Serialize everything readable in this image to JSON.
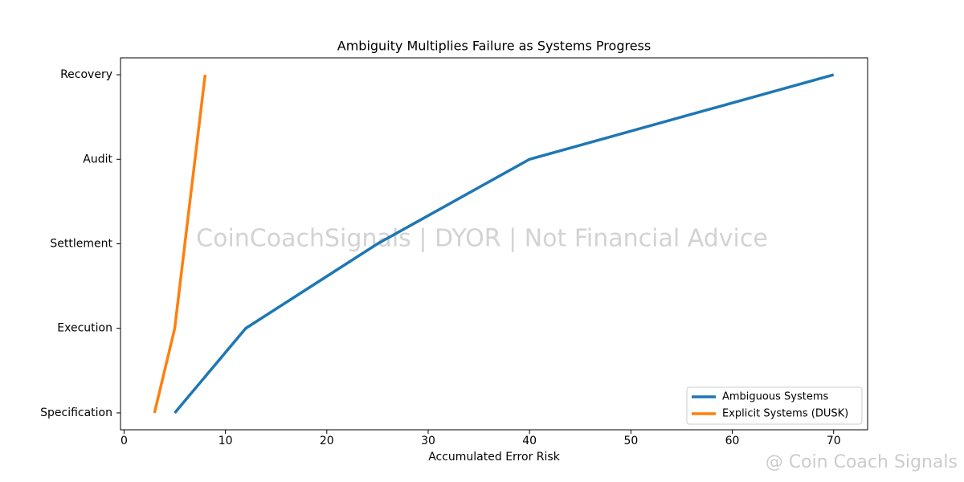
{
  "chart_data": {
    "type": "line",
    "title": "Ambiguity Multiplies Failure as Systems Progress",
    "x_label": "Accumulated Error Risk",
    "categories": [
      "Specification",
      "Execution",
      "Settlement",
      "Audit",
      "Recovery"
    ],
    "series": [
      {
        "name": "Ambiguous Systems",
        "color": "#1f77b4",
        "values": [
          5,
          12,
          25,
          40,
          70
        ]
      },
      {
        "name": "Explicit Systems (DUSK)",
        "color": "#ff7f0e",
        "values": [
          3,
          5,
          6,
          7,
          8
        ]
      }
    ],
    "xlim": [
      -0.35,
      73.35
    ],
    "xticks": [
      0,
      10,
      20,
      30,
      40,
      50,
      60,
      70
    ],
    "legend": "lower right",
    "watermark": "CoinCoachSignals | DYOR | Not Financial Advice",
    "corner_watermark": "@ Coin Coach Signals"
  }
}
